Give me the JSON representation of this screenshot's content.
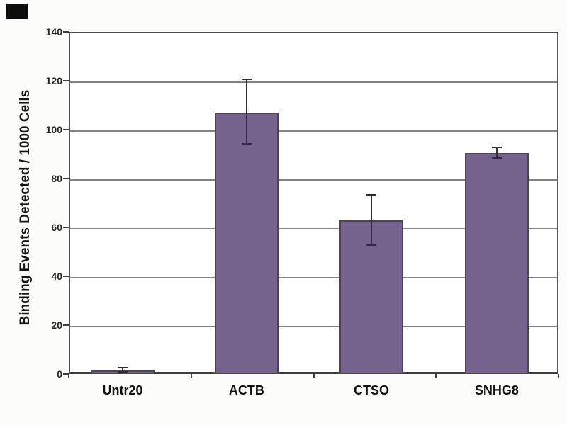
{
  "corner_mark": {
    "color": "#0D0D0D"
  },
  "colors": {
    "background": "#fcfcfa",
    "plot_background": "#ffffff",
    "gridline": "#828282",
    "axis_line": "#3d3d3d",
    "bar_fill": "#74638C",
    "bar_border": "#4C4353",
    "error_bar": "#332C40",
    "text": "#151515"
  },
  "chart_data": {
    "type": "bar",
    "title": "",
    "xlabel": "",
    "ylabel": "Binding Events Detected / 1000 Cells",
    "ylim": [
      0,
      140
    ],
    "yticks": [
      0,
      20,
      40,
      60,
      80,
      100,
      120,
      140
    ],
    "grid": true,
    "legend": false,
    "categories": [
      "Untr20",
      "ACTB",
      "CTSO",
      "SNHG8"
    ],
    "values": [
      1.5,
      107,
      63,
      90.5
    ],
    "error_plus": [
      1.5,
      14,
      10.5,
      2.5
    ],
    "error_minus": [
      1,
      13,
      10.5,
      2.5
    ]
  }
}
